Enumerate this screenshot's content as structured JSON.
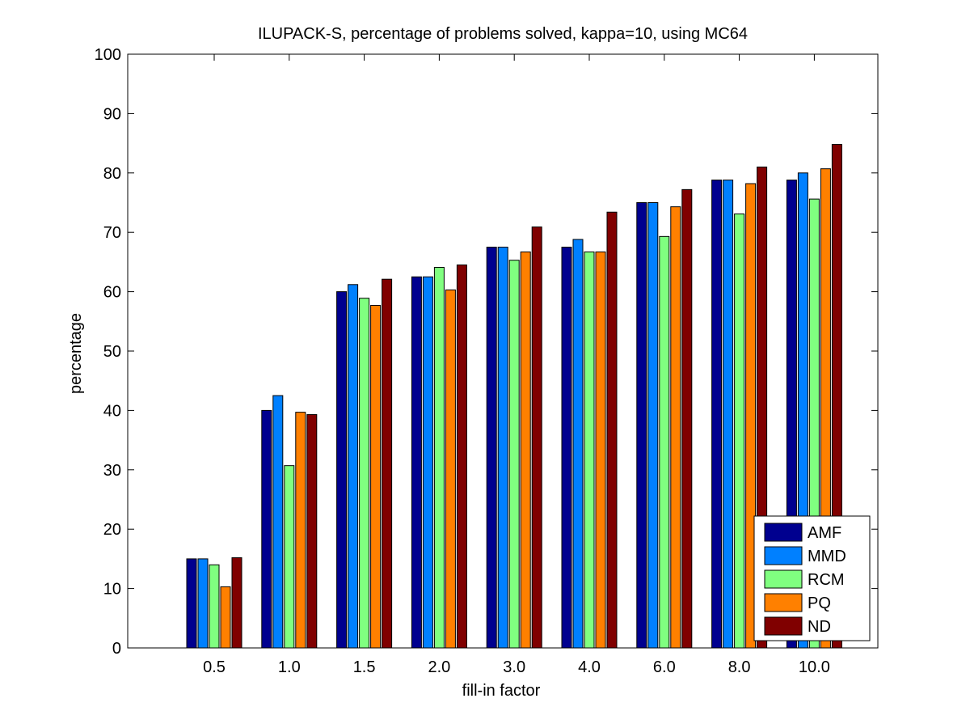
{
  "chart_data": {
    "type": "bar",
    "title": "ILUPACK-S, percentage of problems solved, kappa=10, using MC64",
    "xlabel": "fill-in factor",
    "ylabel": "percentage",
    "ylim": [
      0,
      100
    ],
    "yticks": [
      0,
      10,
      20,
      30,
      40,
      50,
      60,
      70,
      80,
      90,
      100
    ],
    "categories": [
      "0.5",
      "1.0",
      "1.5",
      "2.0",
      "3.0",
      "4.0",
      "6.0",
      "8.0",
      "10.0"
    ],
    "grid": false,
    "legend_position": "bottom-right",
    "series": [
      {
        "name": "AMF",
        "color": "#00008f",
        "values": [
          15.0,
          40.0,
          60.0,
          62.5,
          67.5,
          67.5,
          75.0,
          78.8,
          78.8
        ]
      },
      {
        "name": "MMD",
        "color": "#0080ff",
        "values": [
          15.0,
          42.5,
          61.2,
          62.5,
          67.5,
          68.8,
          75.0,
          78.8,
          80.0
        ]
      },
      {
        "name": "RCM",
        "color": "#80ff80",
        "values": [
          14.0,
          30.7,
          58.9,
          64.1,
          65.3,
          66.7,
          69.3,
          73.1,
          75.6
        ]
      },
      {
        "name": "PQ",
        "color": "#ff8000",
        "values": [
          10.3,
          39.7,
          57.7,
          60.3,
          66.7,
          66.7,
          74.3,
          78.2,
          80.7
        ]
      },
      {
        "name": "ND",
        "color": "#800000",
        "values": [
          15.2,
          39.3,
          62.1,
          64.5,
          70.9,
          73.4,
          77.2,
          81.0,
          84.8
        ]
      }
    ]
  }
}
